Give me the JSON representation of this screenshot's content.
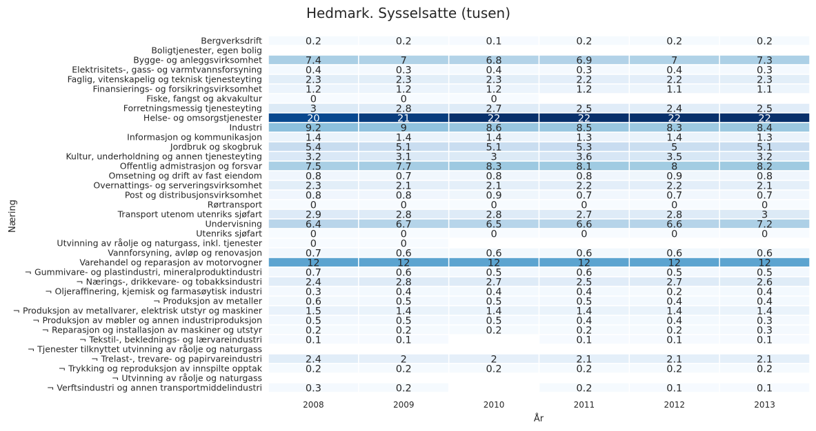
{
  "chart_data": {
    "type": "heatmap",
    "title": "Hedmark. Sysselsatte (tusen)",
    "xlabel": "År",
    "ylabel": "Næring",
    "colormap": "Blues",
    "vmin": 0,
    "vmax": 22,
    "grid": false,
    "x": [
      "2008",
      "2009",
      "2010",
      "2011",
      "2012",
      "2013"
    ],
    "y": [
      "Bergverksdrift",
      "Boligtjenester, egen bolig",
      "Bygge- og anleggsvirksomhet",
      "Elektrisitets-, gass- og varmtvannsforsyning",
      "Faglig, vitenskapelig og teknisk tjenesteyting",
      "Finansierings- og forsikringsvirksomhet",
      "Fiske, fangst og akvakultur",
      "Forretningsmessig tjenesteyting",
      "Helse- og omsorgstjenester",
      "Industri",
      "Informasjon og kommunikasjon",
      "Jordbruk og skogbruk",
      "Kultur, underholdning og annen tjenesteyting",
      "Offentlig admistrasjon og forsvar",
      "Omsetning og drift av fast eiendom",
      "Overnattings- og serveringsvirksomhet",
      "Post og distribusjonsvirksomhet",
      "Rørtransport",
      "Transport utenom utenriks sjøfart",
      "Undervisning",
      "Utenriks sjøfart",
      "Utvinning av råolje og naturgass, inkl. tjenester",
      "Vannforsyning, avløp og renovasjon",
      "Varehandel og reparasjon av motorvogner",
      "¬ Gummivare- og plastindustri, mineralproduktindustri",
      "¬ Nærings-, drikkevare- og tobakksindustri",
      "¬ Oljeraffinering, kjemisk og farmasøytisk industri",
      "¬ Produksjon av metaller",
      "¬ Produksjon av metallvarer, elektrisk utstyr og maskiner",
      "¬ Produksjon av møbler og annen industriproduksjon",
      "¬ Reparasjon og installasjon av maskiner og utstyr",
      "¬ Tekstil-, beklednings- og lærvareindustri",
      "¬ Tjenester tilknyttet utvinning av råolje og naturgass",
      "¬ Trelast-, trevare- og papirvareindustri",
      "¬ Trykking og reproduksjon av innspilte opptak",
      "¬ Utvinning av råolje og naturgass",
      "¬ Verftsindustri og annen transportmiddelindustri"
    ],
    "values": [
      [
        0.2,
        0.2,
        0.1,
        0.2,
        0.2,
        0.2
      ],
      [
        null,
        null,
        null,
        null,
        null,
        null
      ],
      [
        7.4,
        7,
        6.8,
        6.9,
        7,
        7.3
      ],
      [
        0.4,
        0.3,
        0.4,
        0.3,
        0.4,
        0.3
      ],
      [
        2.3,
        2.3,
        2.3,
        2.2,
        2.2,
        2.3
      ],
      [
        1.2,
        1.2,
        1.2,
        1.2,
        1.1,
        1.1
      ],
      [
        0,
        0,
        0,
        null,
        null,
        null
      ],
      [
        3,
        2.8,
        2.7,
        2.5,
        2.4,
        2.5
      ],
      [
        20,
        21,
        22,
        22,
        22,
        22
      ],
      [
        9.2,
        9,
        8.6,
        8.5,
        8.3,
        8.4
      ],
      [
        1.4,
        1.4,
        1.4,
        1.3,
        1.4,
        1.3
      ],
      [
        5.4,
        5.1,
        5.1,
        5.3,
        5,
        5.1
      ],
      [
        3.2,
        3.1,
        3,
        3.6,
        3.5,
        3.2
      ],
      [
        7.5,
        7.7,
        8.3,
        8.1,
        8,
        8.2
      ],
      [
        0.8,
        0.7,
        0.8,
        0.8,
        0.9,
        0.8
      ],
      [
        2.3,
        2.1,
        2.1,
        2.2,
        2.2,
        2.1
      ],
      [
        0.8,
        0.8,
        0.9,
        0.7,
        0.7,
        0.7
      ],
      [
        0,
        0,
        0,
        0,
        0,
        0
      ],
      [
        2.9,
        2.8,
        2.8,
        2.7,
        2.8,
        3
      ],
      [
        6.4,
        6.7,
        6.5,
        6.6,
        6.6,
        7.2
      ],
      [
        0,
        0,
        0,
        0,
        0,
        0
      ],
      [
        0,
        0,
        null,
        null,
        null,
        null
      ],
      [
        0.7,
        0.6,
        0.6,
        0.6,
        0.6,
        0.6
      ],
      [
        12,
        12,
        12,
        12,
        12,
        12
      ],
      [
        0.7,
        0.6,
        0.5,
        0.6,
        0.5,
        0.5
      ],
      [
        2.4,
        2.8,
        2.7,
        2.5,
        2.7,
        2.6
      ],
      [
        0.3,
        0.4,
        0.4,
        0.4,
        0.2,
        0.4
      ],
      [
        0.6,
        0.5,
        0.5,
        0.5,
        0.4,
        0.4
      ],
      [
        1.5,
        1.4,
        1.4,
        1.4,
        1.4,
        1.4
      ],
      [
        0.5,
        0.5,
        0.5,
        0.4,
        0.4,
        0.3
      ],
      [
        0.2,
        0.2,
        0.2,
        0.2,
        0.2,
        0.3
      ],
      [
        0.1,
        0.1,
        null,
        0.1,
        0.1,
        0.1
      ],
      [
        null,
        null,
        null,
        null,
        null,
        null
      ],
      [
        2.4,
        2,
        2,
        2.1,
        2.1,
        2.1
      ],
      [
        0.2,
        0.2,
        0.2,
        0.2,
        0.2,
        0.2
      ],
      [
        null,
        null,
        null,
        null,
        null,
        null
      ],
      [
        0.3,
        0.2,
        null,
        0.2,
        0.1,
        0.1
      ]
    ]
  }
}
